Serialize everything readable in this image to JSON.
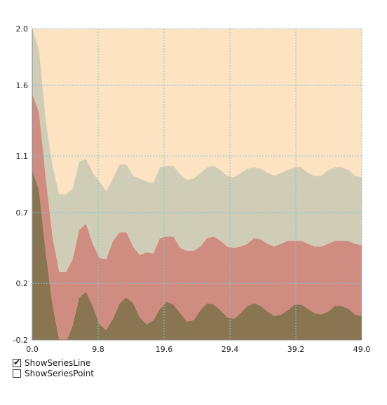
{
  "chart_data": {
    "type": "area",
    "stacked": true,
    "x_ticks": [
      "0.0",
      "9.8",
      "19.6",
      "29.4",
      "39.2",
      "49.0"
    ],
    "y_ticks": [
      "2.0",
      "1.6",
      "1.1",
      "0.7",
      "0.2",
      "-0.2"
    ],
    "xlim": [
      0,
      49
    ],
    "ylim": [
      -0.2,
      2.0
    ],
    "grid": true,
    "colors": {
      "plot_background": "#fde3c2",
      "grid": "#7ec8d8",
      "axis": "#888888",
      "series": [
        "#8a7552",
        "#cf8c80",
        "#d0cdb7"
      ]
    },
    "series": [
      {
        "x": [
          0,
          1,
          2,
          3,
          4,
          5,
          6,
          7,
          8,
          9,
          10,
          11,
          12,
          13,
          14,
          15,
          16,
          17,
          18,
          19,
          20,
          21,
          22,
          23,
          24,
          25,
          26,
          27,
          28,
          29,
          30,
          31,
          32,
          33,
          34,
          35,
          36,
          37,
          38,
          39,
          40,
          41,
          42,
          43,
          44,
          45,
          46,
          47,
          48,
          49
        ],
        "values": [
          1.0,
          0.86,
          0.42,
          0.05,
          -0.2,
          -0.22,
          -0.1,
          0.1,
          0.14,
          0.04,
          -0.09,
          -0.13,
          -0.05,
          0.06,
          0.1,
          0.06,
          -0.04,
          -0.09,
          -0.06,
          0.02,
          0.07,
          0.05,
          -0.01,
          -0.07,
          -0.06,
          0.01,
          0.06,
          0.05,
          0.01,
          -0.04,
          -0.05,
          -0.01,
          0.04,
          0.06,
          0.04,
          0.0,
          -0.03,
          -0.02,
          0.01,
          0.05,
          0.05,
          0.02,
          -0.01,
          -0.02,
          0.0,
          0.04,
          0.04,
          0.02,
          -0.02,
          -0.03
        ]
      },
      {
        "x": [
          0,
          1,
          2,
          3,
          4,
          5,
          6,
          7,
          8,
          9,
          10,
          11,
          12,
          13,
          14,
          15,
          16,
          17,
          18,
          19,
          20,
          21,
          22,
          23,
          24,
          25,
          26,
          27,
          28,
          29,
          30,
          31,
          32,
          33,
          34,
          35,
          36,
          37,
          38,
          39,
          40,
          41,
          42,
          43,
          44,
          45,
          46,
          47,
          48,
          49
        ],
        "values": [
          0.54,
          0.55,
          0.53,
          0.48,
          0.48,
          0.5,
          0.47,
          0.48,
          0.48,
          0.44,
          0.47,
          0.5,
          0.55,
          0.5,
          0.46,
          0.4,
          0.44,
          0.51,
          0.47,
          0.5,
          0.46,
          0.48,
          0.46,
          0.5,
          0.49,
          0.45,
          0.46,
          0.48,
          0.49,
          0.5,
          0.5,
          0.47,
          0.44,
          0.46,
          0.47,
          0.48,
          0.49,
          0.5,
          0.49,
          0.45,
          0.45,
          0.46,
          0.47,
          0.48,
          0.48,
          0.46,
          0.46,
          0.48,
          0.5,
          0.5
        ]
      },
      {
        "x": [
          0,
          1,
          2,
          3,
          4,
          5,
          6,
          7,
          8,
          9,
          10,
          11,
          12,
          13,
          14,
          15,
          16,
          17,
          18,
          19,
          20,
          21,
          22,
          23,
          24,
          25,
          26,
          27,
          28,
          29,
          30,
          31,
          32,
          33,
          34,
          35,
          36,
          37,
          38,
          39,
          40,
          41,
          42,
          43,
          44,
          45,
          46,
          47,
          48,
          49
        ],
        "values": [
          0.46,
          0.44,
          0.4,
          0.5,
          0.55,
          0.55,
          0.5,
          0.48,
          0.46,
          0.5,
          0.54,
          0.48,
          0.44,
          0.48,
          0.48,
          0.5,
          0.54,
          0.5,
          0.5,
          0.5,
          0.5,
          0.5,
          0.52,
          0.5,
          0.51,
          0.52,
          0.5,
          0.5,
          0.5,
          0.5,
          0.5,
          0.52,
          0.53,
          0.5,
          0.5,
          0.5,
          0.5,
          0.5,
          0.5,
          0.52,
          0.52,
          0.5,
          0.5,
          0.5,
          0.52,
          0.52,
          0.52,
          0.5,
          0.48,
          0.48
        ]
      }
    ]
  },
  "options": {
    "show_series_line": {
      "label": "ShowSeriesLine",
      "checked": true
    },
    "show_series_point": {
      "label": "ShowSeriesPoint",
      "checked": false
    }
  }
}
